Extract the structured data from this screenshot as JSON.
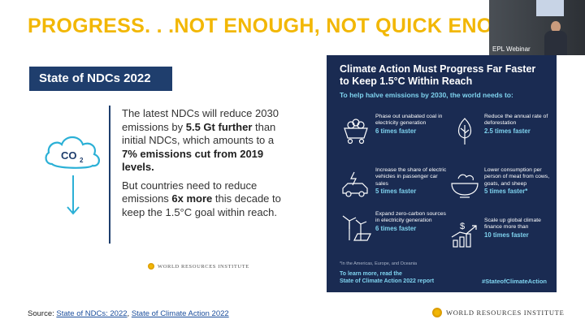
{
  "headline": "PROGRESS. . .NOT ENOUGH, NOT QUICK ENO",
  "webcam": {
    "label": "EPL Webinar"
  },
  "ndc": {
    "title": "State of NDCs 2022",
    "co2_label": "CO",
    "co2_sub": "2",
    "p1_a": "The latest NDCs will reduce 2030 emissions by ",
    "p1_b": "5.5 Gt further",
    "p1_c": " than initial NDCs, which amounts to a ",
    "p1_d": "7% emissions cut from 2019 levels.",
    "p2_a": "But countries need to reduce emissions ",
    "p2_b": "6x more",
    "p2_c": " this decade to keep the 1.5°C goal within reach.",
    "wri": "WORLD RESOURCES INSTITUTE"
  },
  "panel": {
    "title": "Climate Action Must Progress Far Faster to Keep 1.5°C Within Reach",
    "subtitle": "To help halve emissions by 2030, the world needs to:",
    "items": [
      {
        "text": "Phase out unabated coal in electricity generation",
        "emph": "6 times faster",
        "icon": "coal-cart-icon"
      },
      {
        "text": "Reduce the annual rate of deforestation",
        "emph": "2.5 times faster",
        "icon": "tree-icon"
      },
      {
        "text": "Increase the share of electric vehicles in passenger car sales",
        "emph": "5 times faster",
        "icon": "electric-car-icon"
      },
      {
        "text": "Lower consumption per person of meat from cows, goats, and sheep",
        "emph": "5 times faster*",
        "icon": "food-bowl-icon"
      },
      {
        "text": "Expand zero-carbon sources in electricity generation",
        "emph": "6 times faster",
        "icon": "wind-solar-icon"
      },
      {
        "text": "Scale up global climate finance more than",
        "emph": "10 times faster",
        "icon": "finance-growth-icon"
      }
    ],
    "footnote": "*In the Americas, Europe, and Oceania",
    "learn_1": "To learn more, read the",
    "learn_2": "State of Climate Action 2022 report",
    "hashtag": "#StateofClimateAction"
  },
  "source": {
    "prefix": "Source: ",
    "link1": "State of NDCs: 2022",
    "sep": ", ",
    "link2": "State of Climate Action 2022"
  },
  "footer_wri": "WORLD RESOURCES INSTITUTE"
}
